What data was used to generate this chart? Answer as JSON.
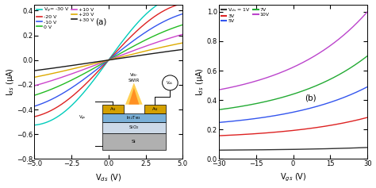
{
  "panel_a": {
    "vg_values": [
      -30,
      -20,
      -10,
      0,
      10,
      20,
      30
    ],
    "vg_colors": [
      "#00ccbb",
      "#dd2222",
      "#3355ee",
      "#22bb22",
      "#cc44cc",
      "#ddaa00",
      "#1a1a1a"
    ],
    "vds_range": [
      -5.0,
      5.0
    ],
    "ids_range": [
      -0.8,
      0.45
    ],
    "xlabel": "V$_{ds}$ (V)",
    "ylabel": "I$_{ds}$ (μA)",
    "label": "(a)",
    "xticks": [
      -5.0,
      -2.5,
      0.0,
      2.5,
      5.0
    ],
    "yticks": [
      -0.8,
      -0.6,
      -0.4,
      -0.2,
      0.0,
      0.2,
      0.4
    ],
    "conductances": [
      0.165,
      0.13,
      0.096,
      0.068,
      0.046,
      0.03,
      0.018
    ],
    "sat_factors": [
      0.018,
      0.014,
      0.01,
      0.007,
      0.004,
      0.003,
      0.002
    ]
  },
  "panel_b": {
    "vds_values": [
      1,
      3,
      5,
      7,
      10
    ],
    "vds_colors": [
      "#333333",
      "#dd2222",
      "#3355ee",
      "#22aa33",
      "#bb44cc"
    ],
    "vgs_range": [
      -30,
      30
    ],
    "ids_range": [
      0.0,
      1.05
    ],
    "xlabel": "V$_{gs}$ (V)",
    "ylabel": "I$_{ds}$ (μA)",
    "label": "(b)",
    "xticks": [
      -30,
      -15,
      0,
      15,
      30
    ],
    "yticks": [
      0.0,
      0.2,
      0.4,
      0.6,
      0.8,
      1.0
    ],
    "ids_at_minus30": [
      0.06,
      0.158,
      0.248,
      0.335,
      0.47
    ],
    "ids_at_plus30": [
      0.078,
      0.282,
      0.49,
      0.7,
      1.0
    ],
    "exp_factor": 1.8
  },
  "inset": {
    "si_color": "#b0b0b0",
    "sio2_color": "#ccd9e8",
    "in2te3_color": "#7ab0d8",
    "au_color": "#d4a000",
    "light_color1": "#ffcc44",
    "light_color2": "#ff6600"
  }
}
